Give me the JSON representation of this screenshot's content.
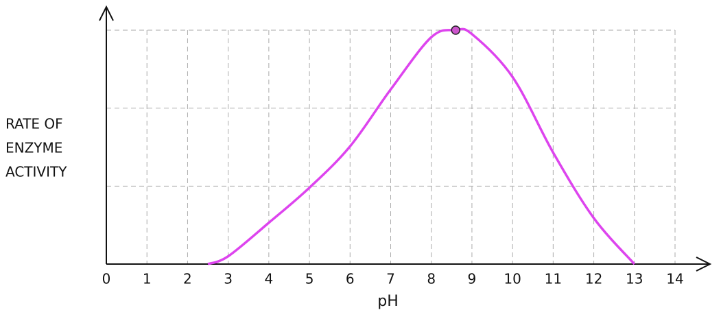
{
  "chart_data": {
    "type": "line",
    "ylabel": [
      "RATE OF",
      "ENZYME",
      "ACTIVITY"
    ],
    "xlabel": "pH",
    "x": [
      2.5,
      3,
      4,
      5,
      6,
      7,
      8,
      8.6,
      9,
      10,
      11,
      12,
      13
    ],
    "series": [
      {
        "color": "#dd44ee",
        "values": [
          0,
          0.1,
          0.53,
          0.98,
          1.51,
          2.24,
          2.91,
          3,
          2.95,
          2.4,
          1.43,
          0.59,
          0
        ]
      }
    ],
    "highlight": {
      "x": 8.6,
      "y": 3,
      "color": "#cc55cc"
    },
    "xlim": [
      0,
      14
    ],
    "xticks": [
      0,
      1,
      2,
      3,
      4,
      5,
      6,
      7,
      8,
      9,
      10,
      11,
      12,
      13,
      14
    ],
    "ylim": [
      0,
      3
    ],
    "yticks": [
      1,
      2,
      3
    ],
    "show_ytick_labels": false,
    "grid": true
  }
}
